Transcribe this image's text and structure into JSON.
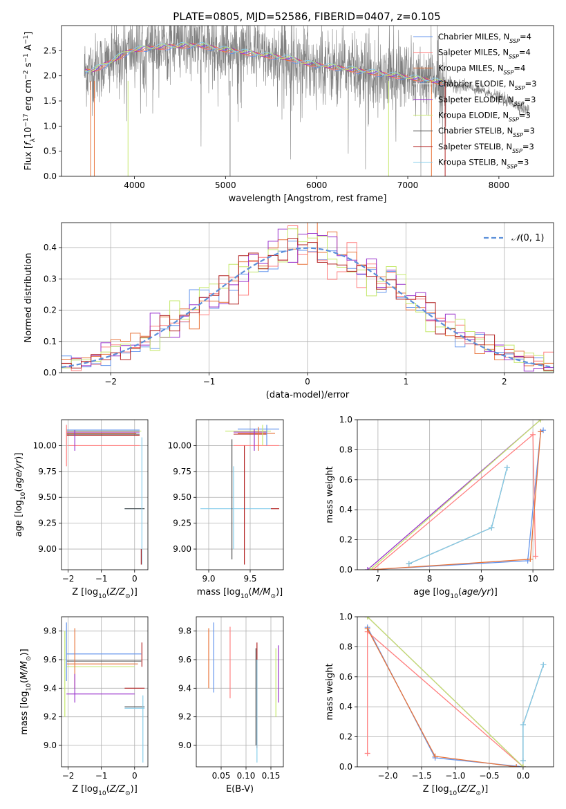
{
  "title": "PLATE=0805, MJD=52586, FIBERID=0407, z=0.105",
  "series": [
    {
      "name": "Chabrier MILES, N$_{SSP}$=4",
      "legend": [
        "Chabrier MILES, N",
        "SSP",
        "=4"
      ],
      "color": "#6495ed"
    },
    {
      "name": "Salpeter MILES, N$_{SSP}$=4",
      "legend": [
        "Salpeter MILES, N",
        "SSP",
        "=4"
      ],
      "color": "#ff7f7f"
    },
    {
      "name": "Kroupa MILES, N$_{SSP}$=4",
      "legend": [
        "Kroupa MILES, N",
        "SSP",
        "=4"
      ],
      "color": "#e8743b"
    },
    {
      "name": "Chabrier ELODIE, N$_{SSP}$=3",
      "legend": [
        "Chabrier ELODIE, N",
        "SSP",
        "=3"
      ],
      "color": "#ffffff"
    },
    {
      "name": "Salpeter ELODIE, N$_{SSP}$=3",
      "legend": [
        "Salpeter ELODIE, N",
        "SSP",
        "=3"
      ],
      "color": "#9932cc"
    },
    {
      "name": "Kroupa ELODIE, N$_{SSP}$=3",
      "legend": [
        "Kroupa ELODIE, N",
        "SSP",
        "=3"
      ],
      "color": "#c5e86c"
    },
    {
      "name": "Chabrier STELIB, N$_{SSP}$=3",
      "legend": [
        "Chabrier STELIB, N",
        "SSP",
        "=3"
      ],
      "color": "#4d4d4d"
    },
    {
      "name": "Salpeter STELIB, N$_{SSP}$=3",
      "legend": [
        "Salpeter STELIB, N",
        "SSP",
        "=3"
      ],
      "color": "#b22222"
    },
    {
      "name": "Kroupa STELIB, N$_{SSP}$=3",
      "legend": [
        "Kroupa STELIB, N",
        "SSP",
        "=3"
      ],
      "color": "#87ceeb"
    }
  ],
  "chart_data": [
    {
      "id": "spectrum",
      "type": "line",
      "xlabel": "wavelength [Angstrom, rest frame]",
      "ylabel": "Flux [$f_\\lambda 10^{-17}$ erg cm$^{-2}$ s$^{-1}$ A$^{-1}$]",
      "xlim": [
        3200,
        8600
      ],
      "ylim": [
        0,
        3.0
      ],
      "xticks": [
        4000,
        5000,
        6000,
        7000,
        8000
      ],
      "yticks": [
        0.0,
        0.5,
        1.0,
        1.5,
        2.0,
        2.5
      ],
      "grid": false,
      "legend": "right",
      "data_color": "#808080",
      "continuum": {
        "x": [
          3450,
          3550,
          3650,
          3750,
          3850,
          3950,
          4100,
          4300,
          4500,
          4700,
          4900,
          5100,
          5300,
          5500,
          5700,
          5900,
          6100,
          6300,
          6500,
          6700,
          6900,
          7100,
          7300,
          7500,
          7700,
          7900,
          8100,
          8330
        ],
        "y": [
          2.1,
          2.12,
          2.2,
          2.3,
          2.4,
          2.5,
          2.55,
          2.58,
          2.6,
          2.62,
          2.55,
          2.5,
          2.45,
          2.4,
          2.35,
          2.25,
          2.2,
          2.15,
          2.1,
          2.05,
          2.0,
          1.95,
          1.9,
          1.82,
          1.75,
          1.65,
          1.5,
          1.3
        ]
      }
    },
    {
      "id": "residuals",
      "type": "step",
      "xlabel": "(data-model)/error",
      "ylabel": "Normed distribution",
      "xlim": [
        -2.5,
        2.5
      ],
      "ylim": [
        0,
        0.48
      ],
      "xticks": [
        -2,
        -1,
        0,
        1,
        2
      ],
      "yticks": [
        0.0,
        0.1,
        0.2,
        0.3,
        0.4
      ],
      "grid": true,
      "legend": "top-right",
      "reference": {
        "name": "$\\mathcal{N}(0,1)$",
        "label": "N(0, 1)",
        "color": "#5b8fd9",
        "mu": 0,
        "sigma": 1
      }
    },
    {
      "id": "age-vs-Z",
      "type": "errorbar",
      "xlabel": "Z [log$_{10}$($Z/Z_\\odot$)]",
      "ylabel": "age  [log$_{10}$($age/yr$)]",
      "xlim": [
        -2.2,
        0.4
      ],
      "ylim": [
        8.8,
        10.25
      ],
      "xticks": [
        -2,
        -1,
        0
      ],
      "yticks": [
        9.0,
        9.25,
        9.5,
        9.75,
        10.0
      ],
      "grid": true,
      "bars": [
        {
          "s": 0,
          "x": [
            -2.05,
            0.15
          ],
          "y": 10.15
        },
        {
          "s": 1,
          "x": [
            -2.0,
            0.15
          ],
          "y": 10.0
        },
        {
          "s": 2,
          "x": [
            -2.05,
            0.05
          ],
          "y": 10.12
        },
        {
          "s": 4,
          "x": [
            -2.05,
            0.15
          ],
          "y": 10.13
        },
        {
          "s": 5,
          "x": [
            -2.05,
            0.2
          ],
          "y": 10.14
        },
        {
          "s": 6,
          "x": [
            -2.05,
            0.15
          ],
          "y": 10.11
        },
        {
          "s": 7,
          "x": [
            -2.05,
            0.15
          ],
          "y": 10.1
        },
        {
          "s": 8,
          "x": [
            -0.3,
            0.3
          ],
          "y": 9.39
        },
        {
          "s": 6,
          "x": [
            -0.3,
            0.3
          ],
          "y": 9.39
        },
        {
          "s": 1,
          "x": -2.05,
          "y": [
            9.8,
            10.2
          ]
        },
        {
          "s": 4,
          "x": -1.8,
          "y": [
            9.95,
            10.15
          ]
        },
        {
          "s": 8,
          "x": 0.22,
          "y": [
            8.85,
            10.08
          ]
        },
        {
          "s": 7,
          "x": 0.2,
          "y": [
            8.85,
            9.0
          ]
        }
      ]
    },
    {
      "id": "age-vs-mass",
      "type": "errorbar",
      "xlabel": "mass [log$_{10}$($M/M_\\odot$)]",
      "ylabel": "",
      "xlim": [
        8.85,
        9.9
      ],
      "ylim": [
        8.8,
        10.25
      ],
      "xticks": [
        9.0,
        9.5
      ],
      "yticks": [
        9.0,
        9.25,
        9.5,
        9.75,
        10.0
      ],
      "grid": true,
      "bars": [
        {
          "s": 0,
          "x": [
            9.35,
            9.85
          ],
          "y": 10.16
        },
        {
          "s": 1,
          "x": [
            9.3,
            9.85
          ],
          "y": 10.0
        },
        {
          "s": 2,
          "x": [
            9.35,
            9.8
          ],
          "y": 10.12
        },
        {
          "s": 4,
          "x": [
            9.3,
            9.7
          ],
          "y": 10.13
        },
        {
          "s": 5,
          "x": [
            9.2,
            9.75
          ],
          "y": 10.14
        },
        {
          "s": 7,
          "x": [
            9.3,
            9.7
          ],
          "y": 10.11
        },
        {
          "s": 8,
          "x": [
            8.9,
            9.75
          ],
          "y": 9.39
        },
        {
          "s": 7,
          "x": [
            9.75,
            9.85
          ],
          "y": 9.39
        },
        {
          "s": 6,
          "x": 9.28,
          "y": [
            8.9,
            10.06
          ]
        },
        {
          "s": 8,
          "x": 9.3,
          "y": [
            9.0,
            9.8
          ]
        },
        {
          "s": 7,
          "x": 9.43,
          "y": [
            8.85,
            10.0
          ]
        },
        {
          "s": 0,
          "x": 9.7,
          "y": [
            10.0,
            10.2
          ]
        },
        {
          "s": 2,
          "x": 9.6,
          "y": [
            9.95,
            10.18
          ]
        },
        {
          "s": 4,
          "x": 9.55,
          "y": [
            9.95,
            10.16
          ]
        },
        {
          "s": 5,
          "x": 9.65,
          "y": [
            10.0,
            10.2
          ]
        }
      ]
    },
    {
      "id": "weight-vs-age",
      "type": "line",
      "xlabel": "age  [log$_{10}$($age/yr$)]",
      "ylabel": "mass weight",
      "xlim": [
        6.6,
        10.4
      ],
      "ylim": [
        0,
        1.0
      ],
      "xticks": [
        7,
        8,
        9,
        10
      ],
      "yticks": [
        0.0,
        0.2,
        0.4,
        0.6,
        0.8,
        1.0
      ],
      "grid": true,
      "series": [
        {
          "s": 0,
          "x": [
            6.85,
            9.9,
            10.15,
            10.2
          ],
          "y": [
            0.0,
            0.06,
            0.92,
            0.93
          ]
        },
        {
          "s": 1,
          "x": [
            6.9,
            10.0,
            10.05
          ],
          "y": [
            0.0,
            0.9,
            0.09
          ]
        },
        {
          "s": 2,
          "x": [
            6.85,
            9.95,
            10.15
          ],
          "y": [
            0.0,
            0.07,
            0.92
          ]
        },
        {
          "s": 4,
          "x": [
            6.8,
            10.15
          ],
          "y": [
            0.0,
            1.0
          ]
        },
        {
          "s": 5,
          "x": [
            6.85,
            10.15
          ],
          "y": [
            0.0,
            1.0
          ]
        },
        {
          "s": 6,
          "x": [
            7.6,
            9.2,
            9.5
          ],
          "y": [
            0.04,
            0.28,
            0.68
          ]
        },
        {
          "s": 8,
          "x": [
            7.6,
            9.2,
            9.5
          ],
          "y": [
            0.04,
            0.28,
            0.68
          ]
        }
      ]
    },
    {
      "id": "mass-vs-Z",
      "type": "errorbar",
      "xlabel": "Z [log$_{10}$($Z/Z_\\odot$)]",
      "ylabel": "mass [log$_{10}$($M/M_\\odot$)]",
      "xlim": [
        -2.2,
        0.4
      ],
      "ylim": [
        8.85,
        9.9
      ],
      "xticks": [
        -2,
        -1,
        0
      ],
      "yticks": [
        9.0,
        9.2,
        9.4,
        9.6,
        9.8
      ],
      "grid": true,
      "bars": [
        {
          "s": 0,
          "x": [
            -2.05,
            0.2
          ],
          "y": 9.64
        },
        {
          "s": 2,
          "x": [
            -2.05,
            0.1
          ],
          "y": 9.57
        },
        {
          "s": 5,
          "x": [
            -2.05,
            0.0
          ],
          "y": 9.55
        },
        {
          "s": 6,
          "x": [
            -2.05,
            0.2
          ],
          "y": 9.59
        },
        {
          "s": 4,
          "x": [
            -2.05,
            0.0
          ],
          "y": 9.36
        },
        {
          "s": 7,
          "x": [
            -0.3,
            0.3
          ],
          "y": 9.4
        },
        {
          "s": 6,
          "x": [
            -0.3,
            0.3
          ],
          "y": 9.27
        },
        {
          "s": 8,
          "x": [
            -0.3,
            0.3
          ],
          "y": 9.26
        },
        {
          "s": 0,
          "x": -2.05,
          "y": [
            9.45,
            9.86
          ]
        },
        {
          "s": 5,
          "x": -2.1,
          "y": [
            9.2,
            9.8
          ]
        },
        {
          "s": 2,
          "x": -1.8,
          "y": [
            9.4,
            9.82
          ]
        },
        {
          "s": 4,
          "x": -1.8,
          "y": [
            9.3,
            9.5
          ]
        },
        {
          "s": 7,
          "x": 0.22,
          "y": [
            9.55,
            9.72
          ]
        },
        {
          "s": 8,
          "x": 0.25,
          "y": [
            8.88,
            9.35
          ]
        }
      ]
    },
    {
      "id": "mass-vs-EBV",
      "type": "errorbar",
      "xlabel": "E(B-V)",
      "ylabel": "",
      "xlim": [
        0.0,
        0.175
      ],
      "ylim": [
        8.85,
        9.9
      ],
      "xticks": [
        0.05,
        0.1,
        0.15
      ],
      "yticks": [
        9.0,
        9.2,
        9.4,
        9.6,
        9.8
      ],
      "grid": true,
      "bars": [
        {
          "s": 2,
          "x": 0.025,
          "y": [
            9.4,
            9.82
          ]
        },
        {
          "s": 0,
          "x": 0.035,
          "y": [
            9.37,
            9.86
          ]
        },
        {
          "s": 1,
          "x": 0.068,
          "y": [
            9.33,
            9.83
          ]
        },
        {
          "s": 6,
          "x": 0.12,
          "y": [
            9.0,
            9.68
          ]
        },
        {
          "s": 7,
          "x": 0.122,
          "y": [
            8.98,
            9.72
          ]
        },
        {
          "s": 8,
          "x": 0.122,
          "y": [
            8.88,
            9.6
          ]
        },
        {
          "s": 4,
          "x": 0.165,
          "y": [
            9.3,
            9.7
          ]
        },
        {
          "s": 5,
          "x": 0.16,
          "y": [
            9.2,
            9.68
          ]
        }
      ]
    },
    {
      "id": "weight-vs-Z",
      "type": "line",
      "xlabel": "Z [log$_{10}$($Z/Z_\\odot$)]",
      "ylabel": "mass weight",
      "xlim": [
        -2.45,
        0.45
      ],
      "ylim": [
        0,
        1.0
      ],
      "xticks": [
        -2.0,
        -1.5,
        -1.0,
        -0.5,
        0.0
      ],
      "yticks": [
        0.0,
        0.2,
        0.4,
        0.6,
        0.8,
        1.0
      ],
      "grid": true,
      "series": [
        {
          "s": 0,
          "x": [
            -2.3,
            -1.3,
            0.0
          ],
          "y": [
            0.93,
            0.06,
            0.0
          ]
        },
        {
          "s": 1,
          "x": [
            -2.3,
            -2.3,
            0.0
          ],
          "y": [
            0.09,
            0.9,
            0.0
          ]
        },
        {
          "s": 2,
          "x": [
            -2.3,
            -1.3,
            -0.1
          ],
          "y": [
            0.92,
            0.07,
            0.0
          ]
        },
        {
          "s": 4,
          "x": [
            -2.3,
            0.0
          ],
          "y": [
            1.0,
            0.0
          ]
        },
        {
          "s": 5,
          "x": [
            -2.3,
            0.0
          ],
          "y": [
            1.0,
            0.0
          ]
        },
        {
          "s": 6,
          "x": [
            0.0,
            0.0,
            0.3
          ],
          "y": [
            0.04,
            0.28,
            0.68
          ]
        },
        {
          "s": 8,
          "x": [
            0.0,
            0.0,
            0.3
          ],
          "y": [
            0.04,
            0.28,
            0.68
          ]
        }
      ]
    }
  ]
}
